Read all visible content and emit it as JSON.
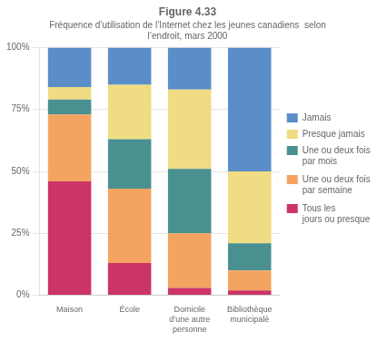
{
  "chart_data": {
    "type": "bar",
    "title": "Figure 4.33",
    "subtitle": "Fréquence d’utilisation de l’Internet chez les jeunes canadiens  selon\nl’endroit, mars 2000",
    "categories": [
      "Maison",
      "École",
      "Domicile\nd’une autre\npersonne",
      "Bibliothèque\nmunicipalè"
    ],
    "series": [
      {
        "name": "Tous les\njours ou presque",
        "color": "#cc3366",
        "values": [
          46,
          13,
          3,
          2
        ]
      },
      {
        "name": "Une ou deux fois\npar semaine",
        "color": "#f4a460",
        "values": [
          27,
          30,
          22,
          8
        ]
      },
      {
        "name": "Une ou deux fois\npar mois",
        "color": "#4a9090",
        "values": [
          6,
          20,
          26,
          11
        ]
      },
      {
        "name": "Presque jamais",
        "color": "#f0dc82",
        "values": [
          5,
          22,
          32,
          29
        ]
      },
      {
        "name": "Jamais",
        "color": "#5b8dc8",
        "values": [
          16,
          15,
          17,
          50
        ]
      }
    ],
    "stacked": true,
    "ylim": [
      0,
      100
    ],
    "yticks": [
      {
        "value": 0,
        "label": "0%"
      },
      {
        "value": 25,
        "label": "25%"
      },
      {
        "value": 50,
        "label": "50%"
      },
      {
        "value": 75,
        "label": "75%"
      },
      {
        "value": 100,
        "label": "100%"
      }
    ],
    "grid": true,
    "legend": "right"
  }
}
